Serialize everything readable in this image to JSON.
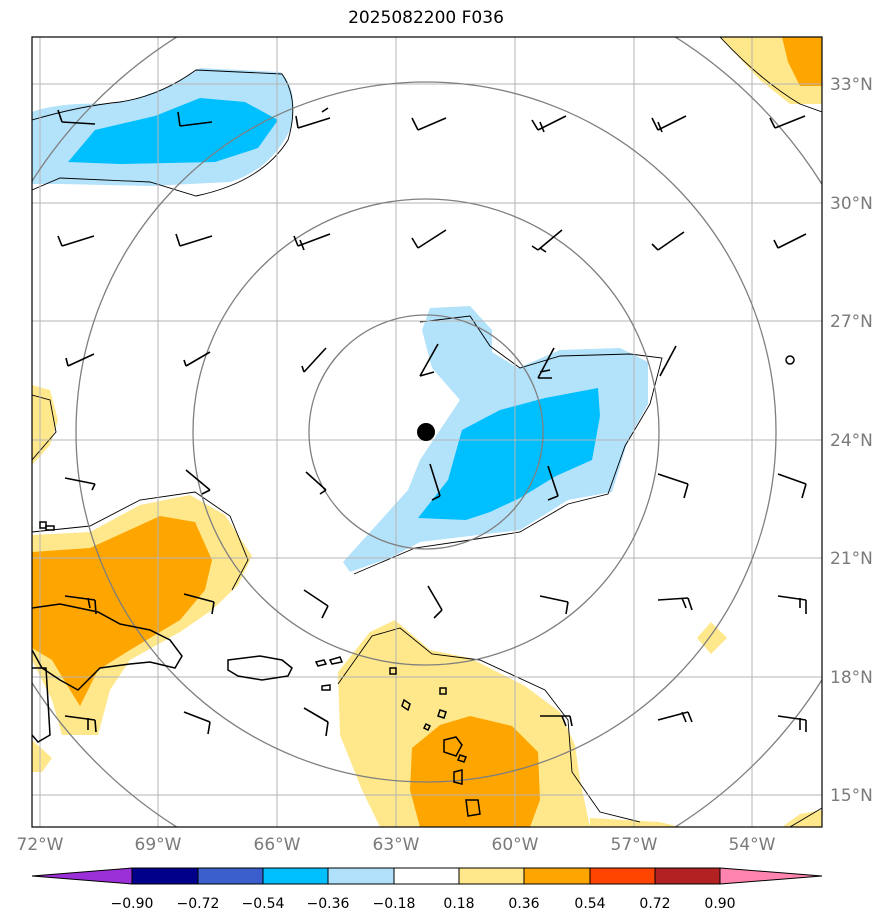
{
  "title": "2025082200 F036",
  "lat_labels": [
    "33°N",
    "30°N",
    "27°N",
    "24°N",
    "21°N",
    "18°N",
    "15°N"
  ],
  "lon_labels": [
    "72°W",
    "69°W",
    "66°W",
    "63°W",
    "60°W",
    "57°W",
    "54°W"
  ],
  "colorbar": {
    "ticks": [
      "−0.90",
      "−0.72",
      "−0.54",
      "−0.36",
      "−0.18",
      "0.18",
      "0.36",
      "0.54",
      "0.72",
      "0.90"
    ],
    "colors": [
      "#9b30d9",
      "#00008b",
      "#3a5fcd",
      "#00bfff",
      "#b0e0fa",
      "#ffffff",
      "#ffe88c",
      "#ffa500",
      "#ff4500",
      "#b22222",
      "#ff85b0"
    ]
  },
  "field_colors": {
    "light_blue": "#b3e2fb",
    "blue": "#00bfff",
    "light_yellow": "#ffe88c",
    "orange": "#ffa500"
  },
  "storm_center_marker": "black-dot"
}
